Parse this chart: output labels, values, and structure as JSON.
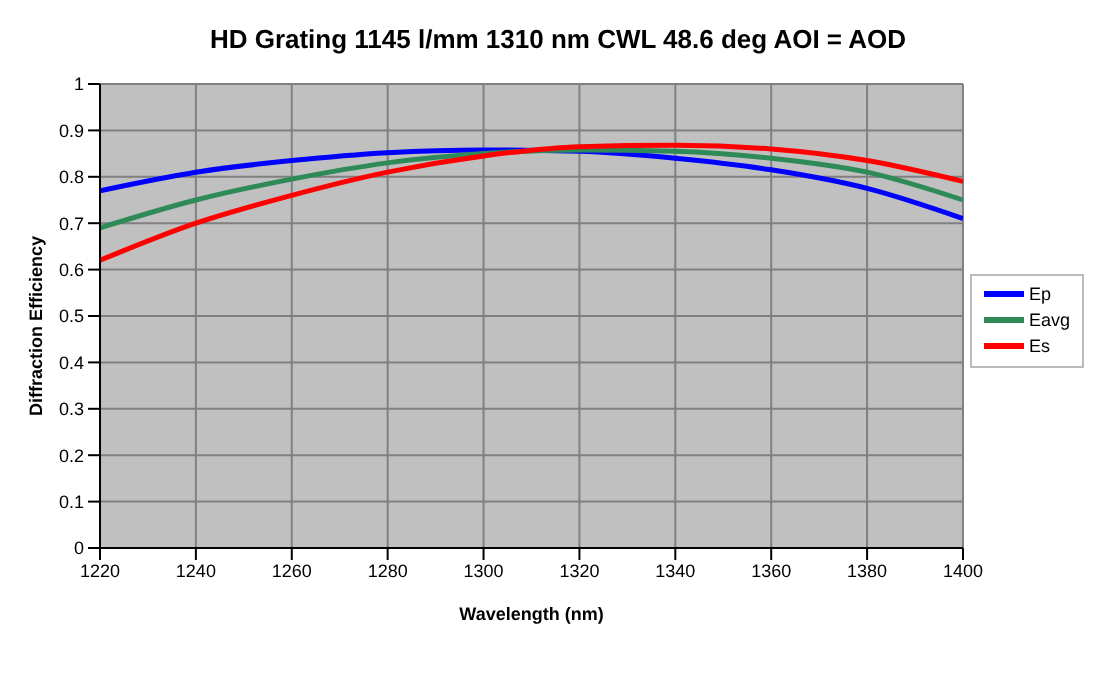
{
  "chart_data": {
    "type": "line",
    "title": "HD Grating 1145 l/mm 1310 nm CWL 48.6 deg AOI = AOD",
    "xlabel": "Wavelength (nm)",
    "ylabel": "Diffraction Efficiency",
    "x": [
      1220,
      1240,
      1260,
      1280,
      1300,
      1320,
      1340,
      1360,
      1380,
      1400
    ],
    "series": [
      {
        "name": "Ep",
        "color": "#0000ff",
        "values": [
          0.77,
          0.81,
          0.835,
          0.852,
          0.858,
          0.855,
          0.84,
          0.815,
          0.775,
          0.71
        ]
      },
      {
        "name": "Eavg",
        "color": "#2e8b57",
        "values": [
          0.69,
          0.75,
          0.795,
          0.83,
          0.85,
          0.858,
          0.855,
          0.84,
          0.81,
          0.75
        ]
      },
      {
        "name": "Es",
        "color": "#ff0000",
        "values": [
          0.62,
          0.7,
          0.76,
          0.81,
          0.845,
          0.865,
          0.868,
          0.86,
          0.835,
          0.79
        ]
      }
    ],
    "xlim": [
      1220,
      1400
    ],
    "xticks": [
      1220,
      1240,
      1260,
      1280,
      1300,
      1320,
      1340,
      1360,
      1380,
      1400
    ],
    "ylim": [
      0,
      1
    ],
    "yticks": [
      0,
      0.1,
      0.2,
      0.3,
      0.4,
      0.5,
      0.6,
      0.7,
      0.8,
      0.9,
      1
    ],
    "grid": true,
    "legend": "right",
    "marker": "none",
    "line_style": "solid"
  }
}
